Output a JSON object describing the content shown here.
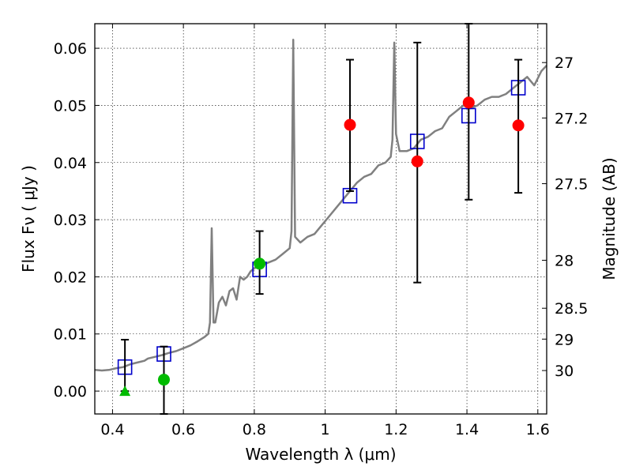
{
  "chart_data": {
    "type": "scatter",
    "xlabel": "Wavelength  λ (μm)",
    "ylabel": "Flux  Fν  ( μJy )",
    "y2label": "Magnitude (AB)",
    "xlim": [
      0.35,
      1.625
    ],
    "ylim": [
      -0.004,
      0.0643
    ],
    "grid": true,
    "x_ticks": [
      0.4,
      0.6,
      0.8,
      1.0,
      1.2,
      1.4,
      1.6
    ],
    "x_tick_labels": [
      "0.4",
      "0.6",
      "0.8",
      "1",
      "1.2",
      "1.4",
      "1.6"
    ],
    "y_ticks": [
      0.0,
      0.01,
      0.02,
      0.03,
      0.04,
      0.05,
      0.06
    ],
    "y_tick_labels": [
      "0.00",
      "0.01",
      "0.02",
      "0.03",
      "0.04",
      "0.05",
      "0.06"
    ],
    "y2_ticks": [
      {
        "label": "27",
        "flux": 0.0575
      },
      {
        "label": "27.2",
        "flux": 0.0478
      },
      {
        "label": "27.5",
        "flux": 0.0363
      },
      {
        "label": "28",
        "flux": 0.0229
      },
      {
        "label": "28.5",
        "flux": 0.0145
      },
      {
        "label": "29",
        "flux": 0.0091
      },
      {
        "label": "30",
        "flux": 0.0036
      }
    ],
    "series": [
      {
        "marker": "line",
        "color": "#808080",
        "points": [
          [
            0.35,
            0.0037
          ],
          [
            0.37,
            0.0036
          ],
          [
            0.39,
            0.0037
          ],
          [
            0.41,
            0.004
          ],
          [
            0.43,
            0.0042
          ],
          [
            0.45,
            0.0047
          ],
          [
            0.47,
            0.005
          ],
          [
            0.49,
            0.0053
          ],
          [
            0.5,
            0.0057
          ],
          [
            0.52,
            0.006
          ],
          [
            0.54,
            0.0063
          ],
          [
            0.56,
            0.0067
          ],
          [
            0.58,
            0.007
          ],
          [
            0.6,
            0.0075
          ],
          [
            0.62,
            0.008
          ],
          [
            0.64,
            0.0087
          ],
          [
            0.66,
            0.0095
          ],
          [
            0.67,
            0.01
          ],
          [
            0.675,
            0.012
          ],
          [
            0.68,
            0.0285
          ],
          [
            0.685,
            0.012
          ],
          [
            0.69,
            0.012
          ],
          [
            0.7,
            0.0155
          ],
          [
            0.71,
            0.0165
          ],
          [
            0.72,
            0.015
          ],
          [
            0.73,
            0.0175
          ],
          [
            0.74,
            0.018
          ],
          [
            0.75,
            0.016
          ],
          [
            0.76,
            0.02
          ],
          [
            0.77,
            0.0195
          ],
          [
            0.78,
            0.02
          ],
          [
            0.79,
            0.021
          ],
          [
            0.8,
            0.0215
          ],
          [
            0.82,
            0.022
          ],
          [
            0.84,
            0.0225
          ],
          [
            0.86,
            0.023
          ],
          [
            0.88,
            0.024
          ],
          [
            0.9,
            0.025
          ],
          [
            0.905,
            0.028
          ],
          [
            0.91,
            0.0615
          ],
          [
            0.915,
            0.027
          ],
          [
            0.93,
            0.026
          ],
          [
            0.95,
            0.027
          ],
          [
            0.97,
            0.0275
          ],
          [
            0.99,
            0.029
          ],
          [
            1.01,
            0.0305
          ],
          [
            1.03,
            0.032
          ],
          [
            1.05,
            0.0335
          ],
          [
            1.07,
            0.035
          ],
          [
            1.09,
            0.0365
          ],
          [
            1.11,
            0.0375
          ],
          [
            1.13,
            0.038
          ],
          [
            1.15,
            0.0395
          ],
          [
            1.17,
            0.04
          ],
          [
            1.185,
            0.041
          ],
          [
            1.19,
            0.044
          ],
          [
            1.195,
            0.061
          ],
          [
            1.2,
            0.045
          ],
          [
            1.21,
            0.042
          ],
          [
            1.23,
            0.042
          ],
          [
            1.25,
            0.0425
          ],
          [
            1.27,
            0.044
          ],
          [
            1.29,
            0.0445
          ],
          [
            1.31,
            0.0455
          ],
          [
            1.33,
            0.046
          ],
          [
            1.35,
            0.048
          ],
          [
            1.37,
            0.049
          ],
          [
            1.39,
            0.05
          ],
          [
            1.41,
            0.0495
          ],
          [
            1.43,
            0.05
          ],
          [
            1.45,
            0.051
          ],
          [
            1.47,
            0.0515
          ],
          [
            1.49,
            0.0515
          ],
          [
            1.51,
            0.052
          ],
          [
            1.53,
            0.053
          ],
          [
            1.55,
            0.054
          ],
          [
            1.57,
            0.055
          ],
          [
            1.59,
            0.0535
          ],
          [
            1.61,
            0.056
          ],
          [
            1.625,
            0.057
          ]
        ]
      },
      {
        "marker": "square",
        "color": "#0000cc",
        "points": [
          [
            0.435,
            0.0042
          ],
          [
            0.545,
            0.0065
          ],
          [
            0.815,
            0.0213
          ],
          [
            1.07,
            0.0342
          ],
          [
            1.26,
            0.0437
          ],
          [
            1.405,
            0.0482
          ],
          [
            1.545,
            0.0531
          ]
        ]
      },
      {
        "marker": "errorbar",
        "color": "#000000",
        "points": [
          [
            0.435,
            0.0,
            0.009
          ],
          [
            0.545,
            -0.004,
            0.0078
          ],
          [
            0.815,
            0.017,
            0.028
          ],
          [
            1.07,
            0.035,
            0.058
          ],
          [
            1.26,
            0.019,
            0.061
          ],
          [
            1.405,
            0.0335,
            0.0643
          ],
          [
            1.545,
            0.0347,
            0.058
          ]
        ]
      },
      {
        "marker": "circle",
        "color": "#ff0000",
        "points": [
          [
            1.07,
            0.0466
          ],
          [
            1.26,
            0.0402
          ],
          [
            1.405,
            0.0505
          ],
          [
            1.545,
            0.0465
          ]
        ]
      },
      {
        "marker": "circle",
        "color": "#00bb00",
        "points": [
          [
            0.545,
            0.002
          ],
          [
            0.815,
            0.0223
          ]
        ]
      },
      {
        "marker": "triangle",
        "color": "#00bb00",
        "points": [
          [
            0.435,
            0.0
          ]
        ]
      }
    ]
  }
}
